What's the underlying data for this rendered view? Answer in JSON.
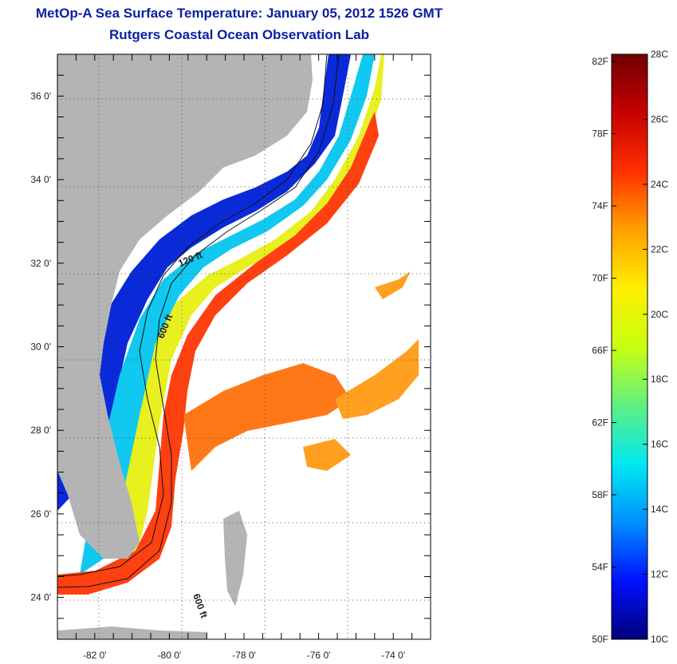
{
  "title_line1": "MetOp-A Sea Surface Temperature:  January 05, 2012 1526 GMT",
  "title_line2": "Rutgers Coastal Ocean Observation Lab",
  "map": {
    "lon_range": [
      -83,
      -73
    ],
    "lat_range": [
      23,
      37
    ],
    "lon_ticks": [
      "-82 0'",
      "-80 0'",
      "-78 0'",
      "-76 0'",
      "-74 0'"
    ],
    "lat_ticks": [
      "36 0'",
      "34 0'",
      "32 0'",
      "30 0'",
      "28 0'",
      "26 0'",
      "24 0'"
    ],
    "grid": true,
    "contour_labels": [
      "120 ft",
      "600 ft",
      "600 ft"
    ],
    "land_color": "#b4b4b4",
    "ocean_no_data_color": "#ffffff"
  },
  "colorbar": {
    "fahrenheit_ticks": [
      "82F",
      "78F",
      "74F",
      "70F",
      "66F",
      "62F",
      "58F",
      "54F",
      "50F"
    ],
    "celsius_ticks": [
      "28C",
      "26C",
      "24C",
      "22C",
      "20C",
      "18C",
      "16C",
      "14C",
      "12C",
      "10C"
    ],
    "min_c": 10,
    "max_c": 28,
    "colors": [
      "#00007a",
      "#0010ff",
      "#0090ff",
      "#00e8f0",
      "#60f080",
      "#c8ff10",
      "#ffee00",
      "#ffa000",
      "#ff3000",
      "#c80000",
      "#700000"
    ]
  }
}
